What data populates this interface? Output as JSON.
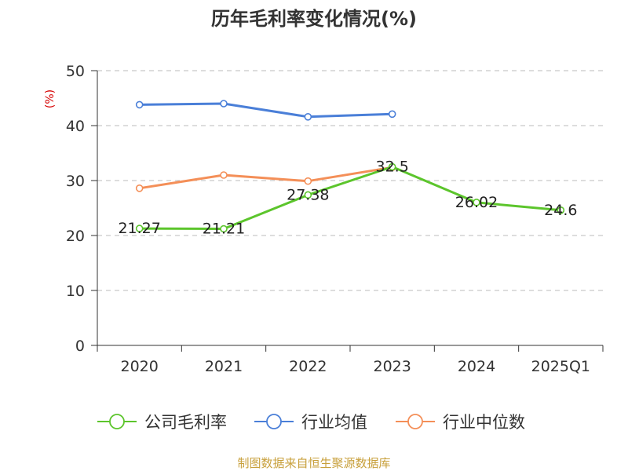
{
  "title": "历年毛利率变化情况(%)",
  "source": "制图数据来自恒生聚源数据库",
  "chart_data": {
    "type": "line",
    "title": "历年毛利率变化情况(%)",
    "ylabel": "(%)",
    "categories": [
      "2020",
      "2021",
      "2022",
      "2023",
      "2024",
      "2025Q1"
    ],
    "ylim": [
      0,
      50
    ],
    "yticks": [
      0,
      10,
      20,
      30,
      40,
      50
    ],
    "grid": true,
    "legend_position": "bottom",
    "series": [
      {
        "name": "公司毛利率",
        "color": "#5cc52c",
        "values": [
          21.27,
          21.21,
          27.38,
          32.5,
          26.02,
          24.6
        ],
        "labels": [
          "21.27",
          "21.21",
          "27.38",
          "32.5",
          "26.02",
          "24.6"
        ]
      },
      {
        "name": "行业均值",
        "color": "#4a7fd8",
        "values": [
          43.8,
          44.0,
          41.6,
          42.1,
          null,
          null
        ]
      },
      {
        "name": "行业中位数",
        "color": "#f48f58",
        "values": [
          28.6,
          31.0,
          29.9,
          32.4,
          null,
          null
        ]
      }
    ]
  }
}
